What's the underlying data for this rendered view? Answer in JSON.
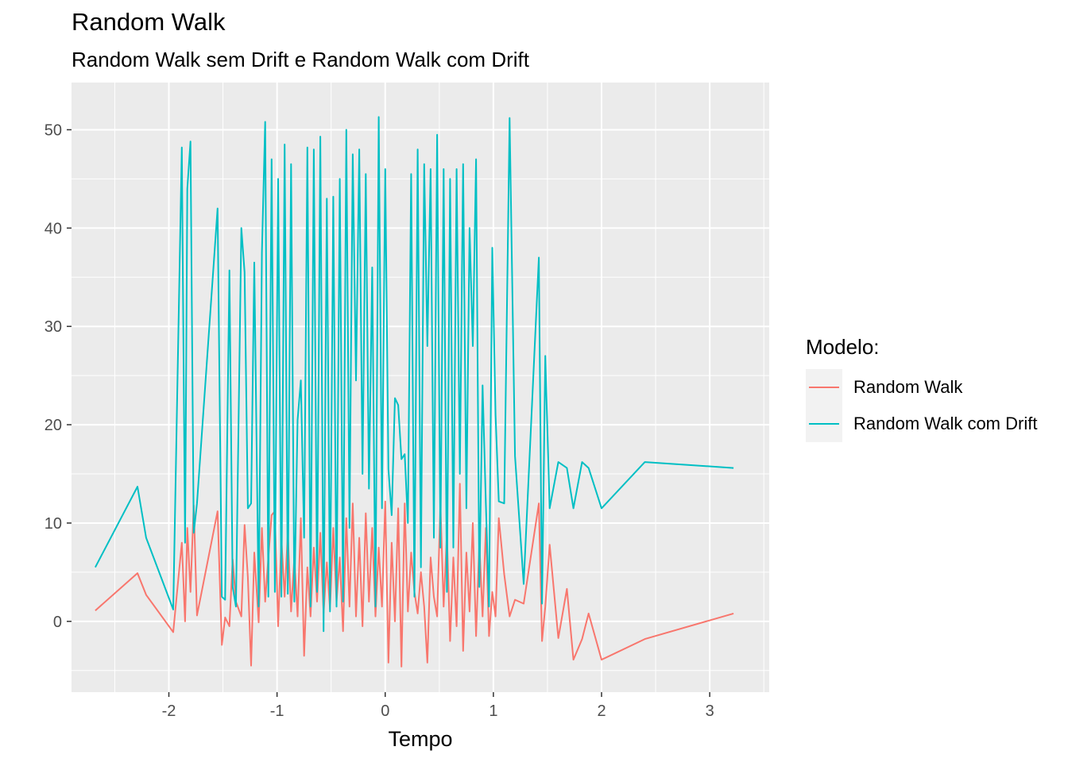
{
  "chart_data": {
    "type": "line",
    "title": "Random Walk",
    "subtitle": "Random Walk sem Drift e Random Walk com Drift",
    "xlabel": "Tempo",
    "ylabel": "",
    "xlim": [
      -2.9,
      3.55
    ],
    "ylim": [
      -7.2,
      54.8
    ],
    "x_ticks": [
      -2,
      -1,
      0,
      1,
      2,
      3
    ],
    "x_tick_labels": [
      "-2",
      "-1",
      "0",
      "1",
      "2",
      "3"
    ],
    "y_ticks": [
      0,
      10,
      20,
      30,
      40,
      50
    ],
    "y_tick_labels": [
      "0",
      "10",
      "20",
      "30",
      "40",
      "50"
    ],
    "grid": true,
    "legend": {
      "title": "Modelo:",
      "placement": "right"
    },
    "x": [
      -2.68,
      -2.29,
      -2.21,
      -1.96,
      -1.88,
      -1.85,
      -1.83,
      -1.8,
      -1.77,
      -1.74,
      -1.55,
      -1.51,
      -1.48,
      -1.44,
      -1.41,
      -1.38,
      -1.33,
      -1.3,
      -1.27,
      -1.24,
      -1.21,
      -1.17,
      -1.14,
      -1.11,
      -1.08,
      -1.05,
      -1.02,
      -0.99,
      -0.96,
      -0.93,
      -0.9,
      -0.87,
      -0.84,
      -0.81,
      -0.78,
      -0.75,
      -0.72,
      -0.69,
      -0.66,
      -0.63,
      -0.6,
      -0.57,
      -0.54,
      -0.51,
      -0.48,
      -0.45,
      -0.42,
      -0.39,
      -0.36,
      -0.33,
      -0.3,
      -0.27,
      -0.24,
      -0.21,
      -0.18,
      -0.15,
      -0.12,
      -0.09,
      -0.06,
      -0.03,
      0.0,
      0.03,
      0.06,
      0.09,
      0.12,
      0.15,
      0.18,
      0.21,
      0.24,
      0.27,
      0.3,
      0.33,
      0.36,
      0.39,
      0.42,
      0.45,
      0.48,
      0.51,
      0.54,
      0.57,
      0.6,
      0.63,
      0.66,
      0.69,
      0.72,
      0.75,
      0.78,
      0.81,
      0.84,
      0.87,
      0.9,
      0.93,
      0.96,
      0.99,
      1.02,
      1.05,
      1.1,
      1.15,
      1.2,
      1.28,
      1.42,
      1.45,
      1.48,
      1.52,
      1.6,
      1.68,
      1.74,
      1.82,
      1.88,
      2.0,
      2.4,
      3.22
    ],
    "series": [
      {
        "name": "Random Walk",
        "color": "#F8766D",
        "values": [
          1.1,
          4.9,
          2.7,
          -1.1,
          8.0,
          0.0,
          9.5,
          3.0,
          11.8,
          0.6,
          11.2,
          -2.4,
          0.4,
          -0.5,
          6.3,
          2.0,
          0.5,
          9.8,
          4.5,
          -4.5,
          7.0,
          -0.1,
          9.5,
          2.0,
          6.5,
          10.8,
          11.2,
          -0.5,
          8.4,
          2.5,
          9.0,
          1.0,
          6.5,
          0.5,
          10.5,
          -3.5,
          5.5,
          0.5,
          7.5,
          2.0,
          9.0,
          0.8,
          6.0,
          1.2,
          9.5,
          2.0,
          6.5,
          -1.0,
          10.5,
          1.5,
          12.0,
          0.5,
          8.5,
          -0.5,
          11.0,
          2.0,
          9.5,
          0.5,
          7.5,
          1.5,
          12.2,
          -4.2,
          8.0,
          0.0,
          11.5,
          -4.6,
          12.0,
          1.0,
          7.0,
          3.0,
          0.8,
          5.0,
          1.5,
          -4.2,
          6.5,
          2.5,
          0.5,
          12.0,
          1.5,
          9.0,
          -2.0,
          6.5,
          -0.5,
          14.0,
          -3.0,
          7.0,
          1.0,
          10.0,
          -1.5,
          8.0,
          0.5,
          9.5,
          -1.5,
          3.0,
          0.5,
          10.5,
          4.8,
          0.5,
          2.2,
          1.8,
          12.0,
          -2.0,
          1.5,
          7.8,
          -1.7,
          3.3,
          -3.9,
          -1.8,
          0.8,
          -3.9,
          -1.8,
          0.8
        ]
      },
      {
        "name": "Random Walk com Drift",
        "color": "#00BFC4",
        "values": [
          5.5,
          13.7,
          8.5,
          1.2,
          48.2,
          8.0,
          44.0,
          48.8,
          9.0,
          12.0,
          42.0,
          2.5,
          2.2,
          35.7,
          3.5,
          1.5,
          40.0,
          35.5,
          11.5,
          12.0,
          36.5,
          1.5,
          37.5,
          50.8,
          2.5,
          47.0,
          3.0,
          45.0,
          2.5,
          48.5,
          2.8,
          46.5,
          2.0,
          20.5,
          24.5,
          8.5,
          48.2,
          1.5,
          48.0,
          3.0,
          49.3,
          -1.0,
          43.0,
          1.0,
          43.2,
          1.5,
          45.0,
          2.0,
          50.0,
          9.5,
          47.5,
          24.5,
          48.0,
          15.0,
          45.5,
          13.5,
          36.0,
          1.5,
          51.3,
          11.5,
          46.0,
          15.5,
          10.8,
          22.7,
          22.0,
          16.5,
          17.0,
          10.0,
          45.5,
          2.5,
          48.0,
          5.5,
          46.5,
          28.0,
          46.0,
          8.5,
          49.5,
          7.5,
          46.0,
          3.0,
          45.0,
          7.5,
          46.0,
          15.0,
          46.5,
          11.5,
          40.0,
          28.0,
          47.0,
          3.5,
          24.0,
          12.0,
          1.5,
          38.0,
          21.0,
          12.2,
          12.0,
          51.2,
          16.8,
          3.8,
          37.0,
          1.8,
          27.0,
          11.5,
          16.2,
          15.6,
          11.5,
          16.2,
          15.6,
          11.5,
          16.2,
          15.6
        ]
      }
    ]
  }
}
